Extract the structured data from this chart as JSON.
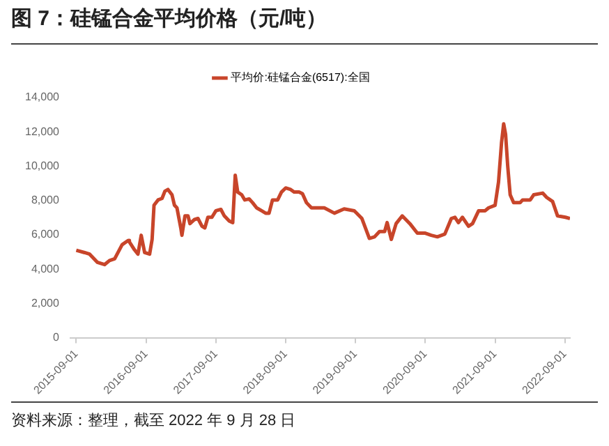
{
  "chart_data": {
    "type": "line",
    "title": "图 7：硅锰合金平均价格（元/吨）",
    "legend": "top",
    "grid": false,
    "marker": "none",
    "line_style": "solid",
    "xlim": [
      "2015-08-01",
      "2022-09-28"
    ],
    "xticks": [
      "2015-09-01",
      "2016-09-01",
      "2017-09-01",
      "2018-09-01",
      "2019-09-01",
      "2020-09-01",
      "2021-09-01",
      "2022-09-01"
    ],
    "ylim": [
      0,
      14000
    ],
    "yticks": [
      0,
      {
        "value": 2000,
        "label": "2,000"
      },
      {
        "value": 4000,
        "label": "4,000"
      },
      {
        "value": 6000,
        "label": "6,000"
      },
      {
        "value": 8000,
        "label": "8,000"
      },
      {
        "value": 10000,
        "label": "10,000"
      },
      {
        "value": 12000,
        "label": "12,000"
      },
      {
        "value": 14000,
        "label": "14,000"
      }
    ],
    "x": [
      "2015-09-01",
      "2015-10-15",
      "2015-11-10",
      "2015-12-20",
      "2016-01-27",
      "2016-02-22",
      "2016-03-20",
      "2016-04-28",
      "2016-05-30",
      "2016-06-05",
      "2016-07-02",
      "2016-07-20",
      "2016-08-06",
      "2016-08-24",
      "2016-09-19",
      "2016-10-02",
      "2016-10-12",
      "2016-11-02",
      "2016-11-23",
      "2016-12-08",
      "2016-12-24",
      "2017-01-14",
      "2017-01-27",
      "2017-02-09",
      "2017-03-02",
      "2017-03-07",
      "2017-03-23",
      "2017-04-08",
      "2017-04-18",
      "2017-05-12",
      "2017-05-30",
      "2017-06-20",
      "2017-07-05",
      "2017-07-21",
      "2017-08-11",
      "2017-09-01",
      "2017-09-27",
      "2017-10-15",
      "2017-11-10",
      "2017-11-28",
      "2017-12-11",
      "2017-12-24",
      "2018-01-14",
      "2018-01-30",
      "2018-02-22",
      "2018-03-12",
      "2018-04-02",
      "2018-04-28",
      "2018-05-19",
      "2018-06-06",
      "2018-06-24",
      "2018-07-21",
      "2018-08-10",
      "2018-09-01",
      "2018-09-27",
      "2018-10-15",
      "2018-11-10",
      "2018-11-28",
      "2018-12-19",
      "2019-01-14",
      "2019-01-28",
      "2019-03-22",
      "2019-05-14",
      "2019-07-04",
      "2019-08-26",
      "2019-10-05",
      "2019-11-13",
      "2019-12-10",
      "2020-01-05",
      "2020-02-01",
      "2020-02-14",
      "2020-03-07",
      "2020-04-01",
      "2020-05-03",
      "2020-06-12",
      "2020-07-21",
      "2020-08-29",
      "2020-10-02",
      "2020-11-03",
      "2020-12-12",
      "2021-01-15",
      "2021-02-03",
      "2021-02-21",
      "2021-03-14",
      "2021-04-15",
      "2021-05-06",
      "2021-06-07",
      "2021-07-11",
      "2021-07-29",
      "2021-09-01",
      "2021-09-19",
      "2021-10-05",
      "2021-10-16",
      "2021-10-26",
      "2021-11-06",
      "2021-11-19",
      "2021-12-07",
      "2022-01-10",
      "2022-01-23",
      "2022-03-04",
      "2022-03-22",
      "2022-05-08",
      "2022-05-29",
      "2022-06-29",
      "2022-07-25",
      "2022-09-04",
      "2022-09-28"
    ],
    "series": [
      {
        "name": "平均价:硅锰合金(6517):全国",
        "color": "#c8452a",
        "values": [
          5100,
          4960,
          4870,
          4400,
          4260,
          4500,
          4600,
          5420,
          5670,
          5580,
          5120,
          4870,
          5970,
          4960,
          4870,
          5730,
          7720,
          8030,
          8120,
          8540,
          8640,
          8330,
          7720,
          7570,
          6340,
          5970,
          7100,
          7100,
          6650,
          6890,
          6950,
          6500,
          6400,
          7020,
          7020,
          7400,
          7480,
          7100,
          6800,
          6710,
          9470,
          8490,
          8330,
          8030,
          8090,
          7870,
          7570,
          7400,
          7260,
          7260,
          8030,
          8030,
          8490,
          8730,
          8640,
          8490,
          8490,
          8390,
          7870,
          7570,
          7570,
          7570,
          7260,
          7510,
          7400,
          6950,
          5790,
          5880,
          6190,
          6190,
          6710,
          5730,
          6650,
          7100,
          6650,
          6100,
          6100,
          5970,
          5880,
          6040,
          6950,
          7020,
          6710,
          7020,
          6500,
          6650,
          7400,
          7400,
          7570,
          7720,
          9070,
          11400,
          12470,
          11860,
          10020,
          8330,
          7870,
          7870,
          8030,
          8030,
          8330,
          8430,
          8180,
          7940,
          7100,
          7020,
          6950
        ]
      }
    ],
    "annotations": [
      "资料来源：整理，截至 2022 年 9 月 28 日"
    ]
  }
}
